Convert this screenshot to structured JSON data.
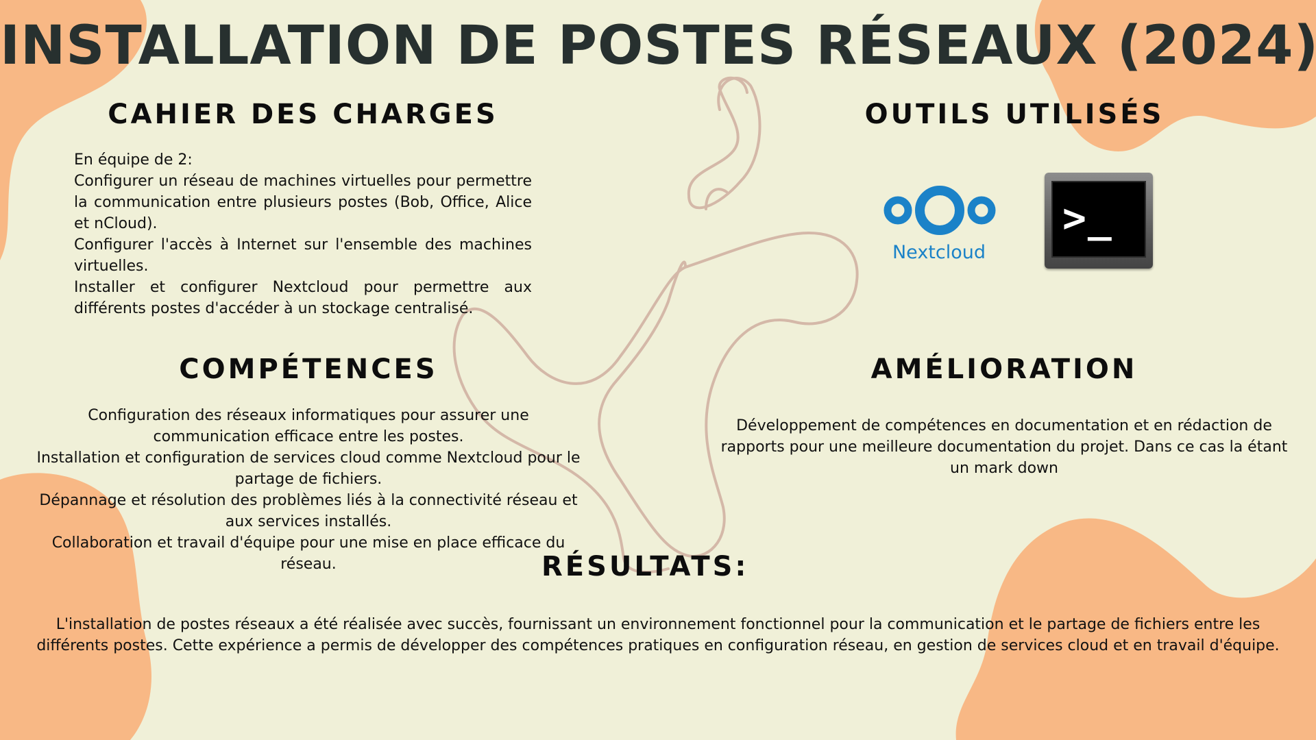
{
  "title": "INSTALLATION DE POSTES RÉSEAUX (2024)",
  "colors": {
    "background": "#f0f0d8",
    "blob": "#f8b885",
    "squiggle": "#d4b8a8",
    "title": "#27302f",
    "nextcloud_blue": "#1b82c8"
  },
  "cahier": {
    "heading": "CAHIER DES CHARGES",
    "paragraphs": [
      "En équipe de 2:",
      "Configurer un réseau de machines virtuelles pour permettre la communication entre plusieurs postes (Bob, Office, Alice et nCloud).",
      "Configurer l'accès à Internet sur l'ensemble des machines virtuelles.",
      "Installer et configurer Nextcloud pour permettre aux différents postes d'accéder à un stockage centralisé."
    ]
  },
  "outils": {
    "heading": "OUTILS UTILISÉS",
    "tools": [
      {
        "icon": "nextcloud-logo",
        "label": "Nextcloud"
      },
      {
        "icon": "terminal-icon",
        "prompt": ">_"
      }
    ]
  },
  "competences": {
    "heading": "COMPÉTENCES",
    "paragraphs": [
      "Configuration des réseaux informatiques pour assurer une communication efficace entre les postes.",
      "Installation et configuration de services cloud comme Nextcloud pour le partage de fichiers.",
      "Dépannage et résolution des problèmes liés à la connectivité réseau et aux services installés.",
      "Collaboration et travail d'équipe pour une mise en place efficace du réseau."
    ]
  },
  "amelioration": {
    "heading": "AMÉLIORATION",
    "paragraphs": [
      "Développement de compétences en documentation et en rédaction de rapports pour une meilleure documentation du projet. Dans ce cas la étant un mark down"
    ]
  },
  "resultats": {
    "heading": "RÉSULTATS:",
    "paragraphs": [
      "L'installation de postes réseaux a été réalisée avec succès, fournissant un environnement fonctionnel pour la communication et le partage de fichiers entre les différents postes. Cette expérience a permis de développer des compétences pratiques en configuration réseau, en gestion de services cloud et en travail d'équipe."
    ]
  }
}
